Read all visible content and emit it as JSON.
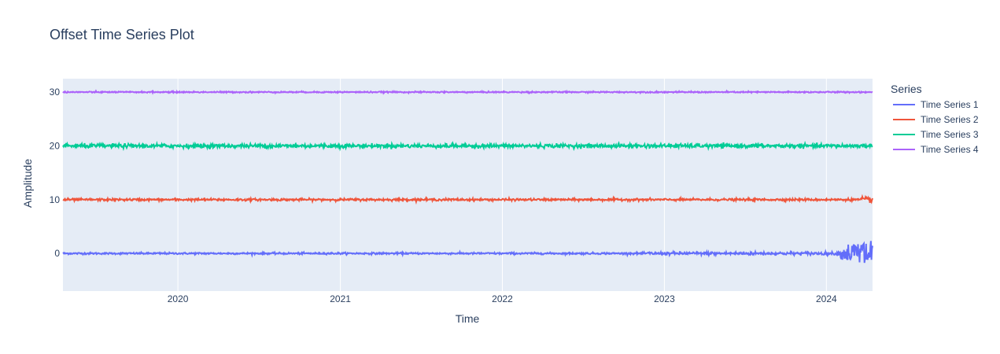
{
  "chart_data": {
    "type": "line",
    "title": "Offset Time Series Plot",
    "xlabel": "Time",
    "ylabel": "Amplitude",
    "xlim": [
      "2019-04-17",
      "2024-04-14"
    ],
    "ylim": [
      -7,
      32.5
    ],
    "x_ticks": [
      "2020",
      "2021",
      "2022",
      "2023",
      "2024"
    ],
    "y_ticks": [
      0,
      10,
      20,
      30
    ],
    "grid": true,
    "legend": {
      "title": "Series",
      "placement": "right"
    },
    "series": [
      {
        "name": "Time Series 1",
        "color": "#636efa",
        "baseline": 0,
        "note_values": {
          "typical_range": [
            -0.3,
            0.3
          ],
          "late_range": [
            -5,
            3.5
          ]
        }
      },
      {
        "name": "Time Series 2",
        "color": "#ef553b",
        "baseline": 10,
        "note_values": {
          "typical_range": [
            9.7,
            10.3
          ]
        }
      },
      {
        "name": "Time Series 3",
        "color": "#00cc96",
        "baseline": 20,
        "note_values": {
          "typical_range": [
            19.5,
            20.5
          ]
        }
      },
      {
        "name": "Time Series 4",
        "color": "#ab63fa",
        "baseline": 30,
        "note_values": {
          "typical_range": [
            29.8,
            30.2
          ]
        }
      }
    ]
  }
}
